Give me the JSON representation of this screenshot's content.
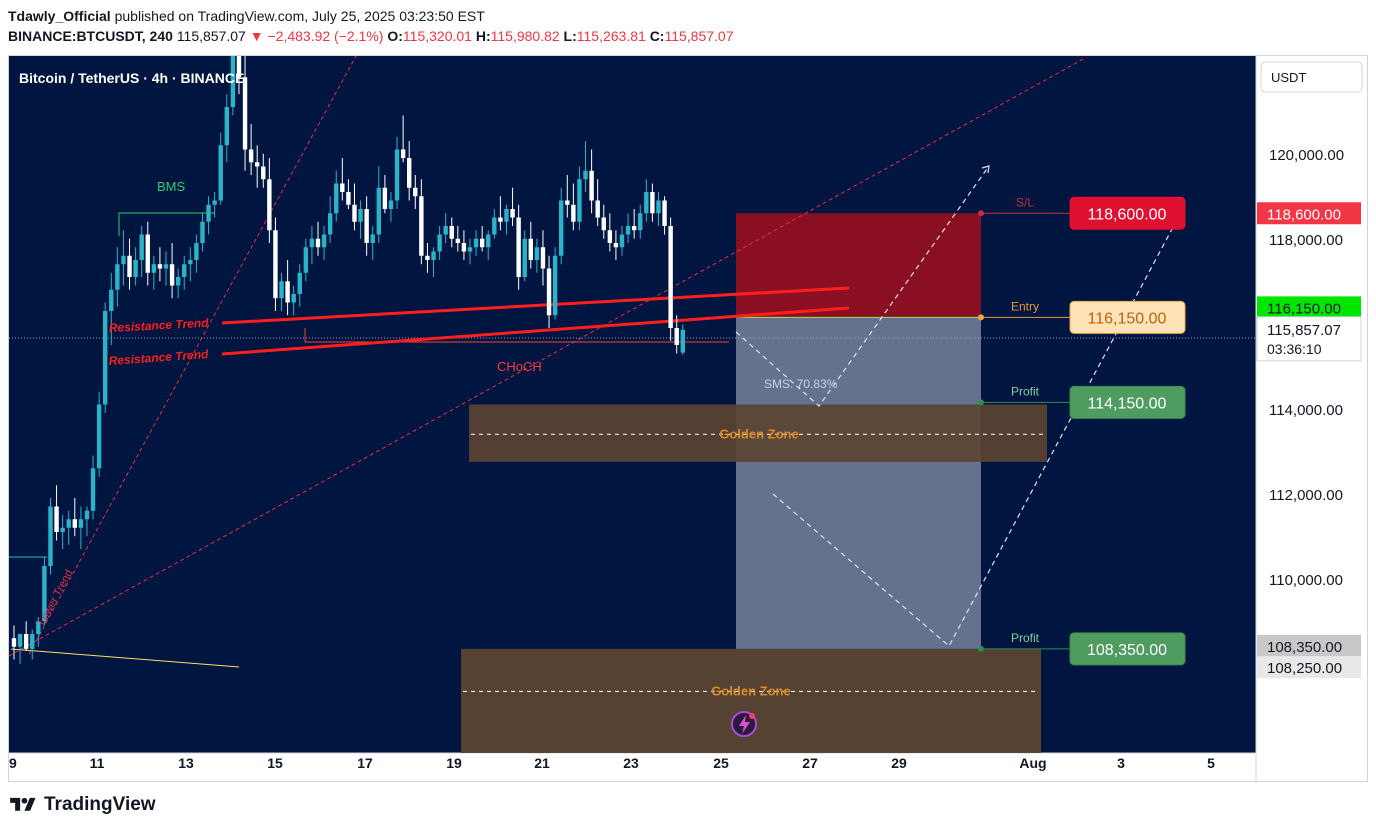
{
  "header": {
    "author": "Tdawly_Official",
    "published": "published on TradingView.com, July 25, 2025 03:23:50 EST",
    "symbol": "BINANCE:BTCUSDT, 240",
    "last": "115,857.07",
    "change": "−2,483.92 (−2.1%)",
    "o_label": "O:",
    "o": "115,320.01",
    "h_label": "H:",
    "h": "115,980.82",
    "l_label": "L:",
    "l": "115,263.81",
    "c_label": "C:",
    "c": "115,857.07"
  },
  "chart_title": "Bitcoin / TetherUS · 4h · BINANCE",
  "currency_button": "USDT",
  "footer": {
    "brand": "TradingView",
    "logo_icon": "tradingview-logo-icon"
  },
  "colors": {
    "background": "#001540",
    "bull": "#2bb3c9",
    "bear": "#ffffff",
    "stop_zone": "#8b0f23",
    "target_zone": "#6d7a94",
    "golden_zone": "#5a4431",
    "resistance": "#ff1e1e",
    "trend_dashed": "#e0304a"
  },
  "annotations": {
    "bms": "BMS",
    "choch": "CHoCH",
    "resistance_1": "Resistance Trend",
    "resistance_2": "Resistance Trend",
    "lower_trend": "Lower Trend",
    "sms": "SMS: 70.83%",
    "golden_1": "Golden Zone",
    "golden_2": "Golden Zone",
    "sl": "S/L",
    "entry": "Entry",
    "profit_1": "Profit",
    "profit_2": "Profit"
  },
  "chart_data": {
    "type": "candlestick",
    "timeframe": "4h",
    "x_ticks": [
      "9",
      "11",
      "13",
      "15",
      "17",
      "19",
      "21",
      "23",
      "25",
      "27",
      "29",
      "Aug",
      "3",
      "5"
    ],
    "y_ticks": [
      "120,000.00",
      "118,000.00",
      "114,000.00",
      "112,000.00",
      "110,000.00"
    ],
    "y_tick_values": [
      120000,
      118000,
      114000,
      112000,
      110000
    ],
    "ylim": [
      105900,
      122300
    ],
    "price_labels": [
      {
        "text": "118,600.00",
        "value": 118600,
        "style": "stop"
      },
      {
        "text": "116,150.00",
        "value": 116150,
        "style": "entry"
      },
      {
        "text": "114,150.00",
        "value": 114150,
        "style": "profit"
      },
      {
        "text": "108,350.00",
        "value": 108350,
        "style": "profit"
      }
    ],
    "axis_labels": [
      {
        "text": "118,600.00",
        "value": 118600,
        "style": "stop"
      },
      {
        "text": "116,150.00",
        "value": 116150,
        "style": "green"
      },
      {
        "text": "115,857.07",
        "value": 115857.07,
        "style": "current",
        "countdown": "03:36:10"
      },
      {
        "text": "108,350.00",
        "value": 108350,
        "style": "grey"
      },
      {
        "text": "108,250.00",
        "value": 108250,
        "style": "grey2"
      }
    ],
    "trade": {
      "entry": 116150,
      "stop": 118600,
      "target_1": 114150,
      "target_2": 108350
    },
    "golden_zones": [
      {
        "top": 114100,
        "bottom": 112750,
        "mid": 113400
      },
      {
        "top": 108350,
        "bottom": 105900,
        "mid": 107350
      }
    ],
    "candles": [
      [
        108600,
        108900,
        108100,
        108400
      ],
      [
        108400,
        108700,
        108000,
        108700
      ],
      [
        108700,
        109000,
        108300,
        108350
      ],
      [
        108350,
        108800,
        108100,
        108700
      ],
      [
        108700,
        109100,
        108400,
        109000
      ],
      [
        109000,
        110500,
        108900,
        110300
      ],
      [
        110300,
        111900,
        110100,
        111700
      ],
      [
        111700,
        112200,
        110900,
        111100
      ],
      [
        111100,
        111500,
        110700,
        111200
      ],
      [
        111200,
        111600,
        110800,
        111400
      ],
      [
        111400,
        111900,
        111000,
        111200
      ],
      [
        111200,
        111700,
        110700,
        111400
      ],
      [
        111400,
        111700,
        111000,
        111600
      ],
      [
        111600,
        112900,
        111400,
        112600
      ],
      [
        112600,
        114400,
        112400,
        114100
      ],
      [
        114100,
        116500,
        113900,
        116300
      ],
      [
        116300,
        117200,
        115500,
        116800
      ],
      [
        116800,
        117800,
        116400,
        117400
      ],
      [
        117400,
        118200,
        116900,
        117600
      ],
      [
        117600,
        118000,
        116800,
        117100
      ],
      [
        117100,
        117800,
        116900,
        117500
      ],
      [
        117500,
        118300,
        117100,
        118100
      ],
      [
        118100,
        118400,
        116900,
        117200
      ],
      [
        117200,
        117600,
        116800,
        117400
      ],
      [
        117400,
        117800,
        117000,
        117300
      ],
      [
        117300,
        117700,
        116900,
        117400
      ],
      [
        117400,
        117900,
        116600,
        116900
      ],
      [
        116900,
        117300,
        116600,
        117100
      ],
      [
        117100,
        117600,
        116800,
        117400
      ],
      [
        117400,
        117800,
        117000,
        117500
      ],
      [
        117500,
        118100,
        117200,
        117900
      ],
      [
        117900,
        118600,
        117700,
        118400
      ],
      [
        118400,
        119000,
        118100,
        118800
      ],
      [
        118800,
        119100,
        118500,
        118900
      ],
      [
        118900,
        120500,
        118800,
        120200
      ],
      [
        120200,
        121400,
        119800,
        121100
      ],
      [
        121100,
        123200,
        120900,
        122800
      ],
      [
        122800,
        123000,
        121400,
        121800
      ],
      [
        121800,
        122400,
        119600,
        120100
      ],
      [
        120100,
        120700,
        119500,
        119800
      ],
      [
        119800,
        120200,
        119200,
        119700
      ],
      [
        119700,
        120000,
        119200,
        119400
      ],
      [
        119400,
        119900,
        117900,
        118200
      ],
      [
        118200,
        118500,
        116300,
        116600
      ],
      [
        116600,
        117200,
        116300,
        117000
      ],
      [
        117000,
        117500,
        116200,
        116500
      ],
      [
        116500,
        116900,
        116200,
        116700
      ],
      [
        116700,
        117400,
        116400,
        117200
      ],
      [
        117200,
        118000,
        117000,
        117800
      ],
      [
        117800,
        118300,
        117400,
        118000
      ],
      [
        118000,
        118400,
        117600,
        117800
      ],
      [
        117800,
        118300,
        117500,
        118100
      ],
      [
        118100,
        119000,
        117900,
        118600
      ],
      [
        118600,
        119600,
        118400,
        119300
      ],
      [
        119300,
        119900,
        118900,
        119100
      ],
      [
        119100,
        119400,
        118700,
        118800
      ],
      [
        118800,
        119300,
        118200,
        118400
      ],
      [
        118400,
        118900,
        118000,
        118700
      ],
      [
        118700,
        119000,
        117600,
        117900
      ],
      [
        117900,
        118300,
        117500,
        118100
      ],
      [
        118100,
        119700,
        117900,
        119200
      ],
      [
        119200,
        119500,
        118600,
        118700
      ],
      [
        118700,
        119100,
        118400,
        118900
      ],
      [
        118900,
        120400,
        118700,
        120100
      ],
      [
        120100,
        120900,
        119800,
        119900
      ],
      [
        119900,
        120300,
        118900,
        119200
      ],
      [
        119200,
        119500,
        118700,
        119000
      ],
      [
        119000,
        119400,
        117400,
        117600
      ],
      [
        117600,
        117900,
        117200,
        117500
      ],
      [
        117500,
        117800,
        117100,
        117700
      ],
      [
        117700,
        118300,
        117500,
        118100
      ],
      [
        118100,
        118600,
        117900,
        118300
      ],
      [
        118300,
        118500,
        117800,
        118000
      ],
      [
        118000,
        118300,
        117700,
        117900
      ],
      [
        117900,
        118200,
        117500,
        117700
      ],
      [
        117700,
        118000,
        117400,
        117800
      ],
      [
        117800,
        118200,
        117600,
        118000
      ],
      [
        118000,
        118300,
        117700,
        117800
      ],
      [
        117800,
        118200,
        117500,
        118100
      ],
      [
        118100,
        118700,
        118000,
        118500
      ],
      [
        118500,
        119000,
        118200,
        118400
      ],
      [
        118400,
        118800,
        118100,
        118700
      ],
      [
        118700,
        119200,
        118300,
        118500
      ],
      [
        118500,
        118800,
        116800,
        117100
      ],
      [
        117100,
        118200,
        117000,
        118000
      ],
      [
        118000,
        118400,
        117300,
        117500
      ],
      [
        117500,
        118000,
        117200,
        117800
      ],
      [
        117800,
        118200,
        116900,
        117300
      ],
      [
        117300,
        117600,
        115900,
        116200
      ],
      [
        116200,
        117800,
        116100,
        117600
      ],
      [
        117600,
        119200,
        117400,
        118900
      ],
      [
        118900,
        119500,
        118500,
        118800
      ],
      [
        118800,
        119300,
        118200,
        118400
      ],
      [
        118400,
        119700,
        118200,
        119400
      ],
      [
        119400,
        120300,
        119100,
        119600
      ],
      [
        119600,
        120100,
        118600,
        118900
      ],
      [
        118900,
        119400,
        118300,
        118500
      ],
      [
        118500,
        118800,
        118000,
        118200
      ],
      [
        118200,
        118600,
        117700,
        117900
      ],
      [
        117900,
        118200,
        117500,
        117800
      ],
      [
        117800,
        118300,
        117600,
        118100
      ],
      [
        118100,
        118600,
        117900,
        118300
      ],
      [
        118300,
        118700,
        118000,
        118200
      ],
      [
        118200,
        118800,
        118000,
        118600
      ],
      [
        118600,
        119400,
        118400,
        119100
      ],
      [
        119100,
        119300,
        118400,
        118600
      ],
      [
        118600,
        119100,
        118300,
        118900
      ],
      [
        118900,
        119000,
        118100,
        118300
      ],
      [
        118300,
        118500,
        115600,
        115900
      ],
      [
        115900,
        116200,
        115300,
        115500
      ],
      [
        115320.01,
        115980.82,
        115263.81,
        115857.07
      ]
    ]
  }
}
